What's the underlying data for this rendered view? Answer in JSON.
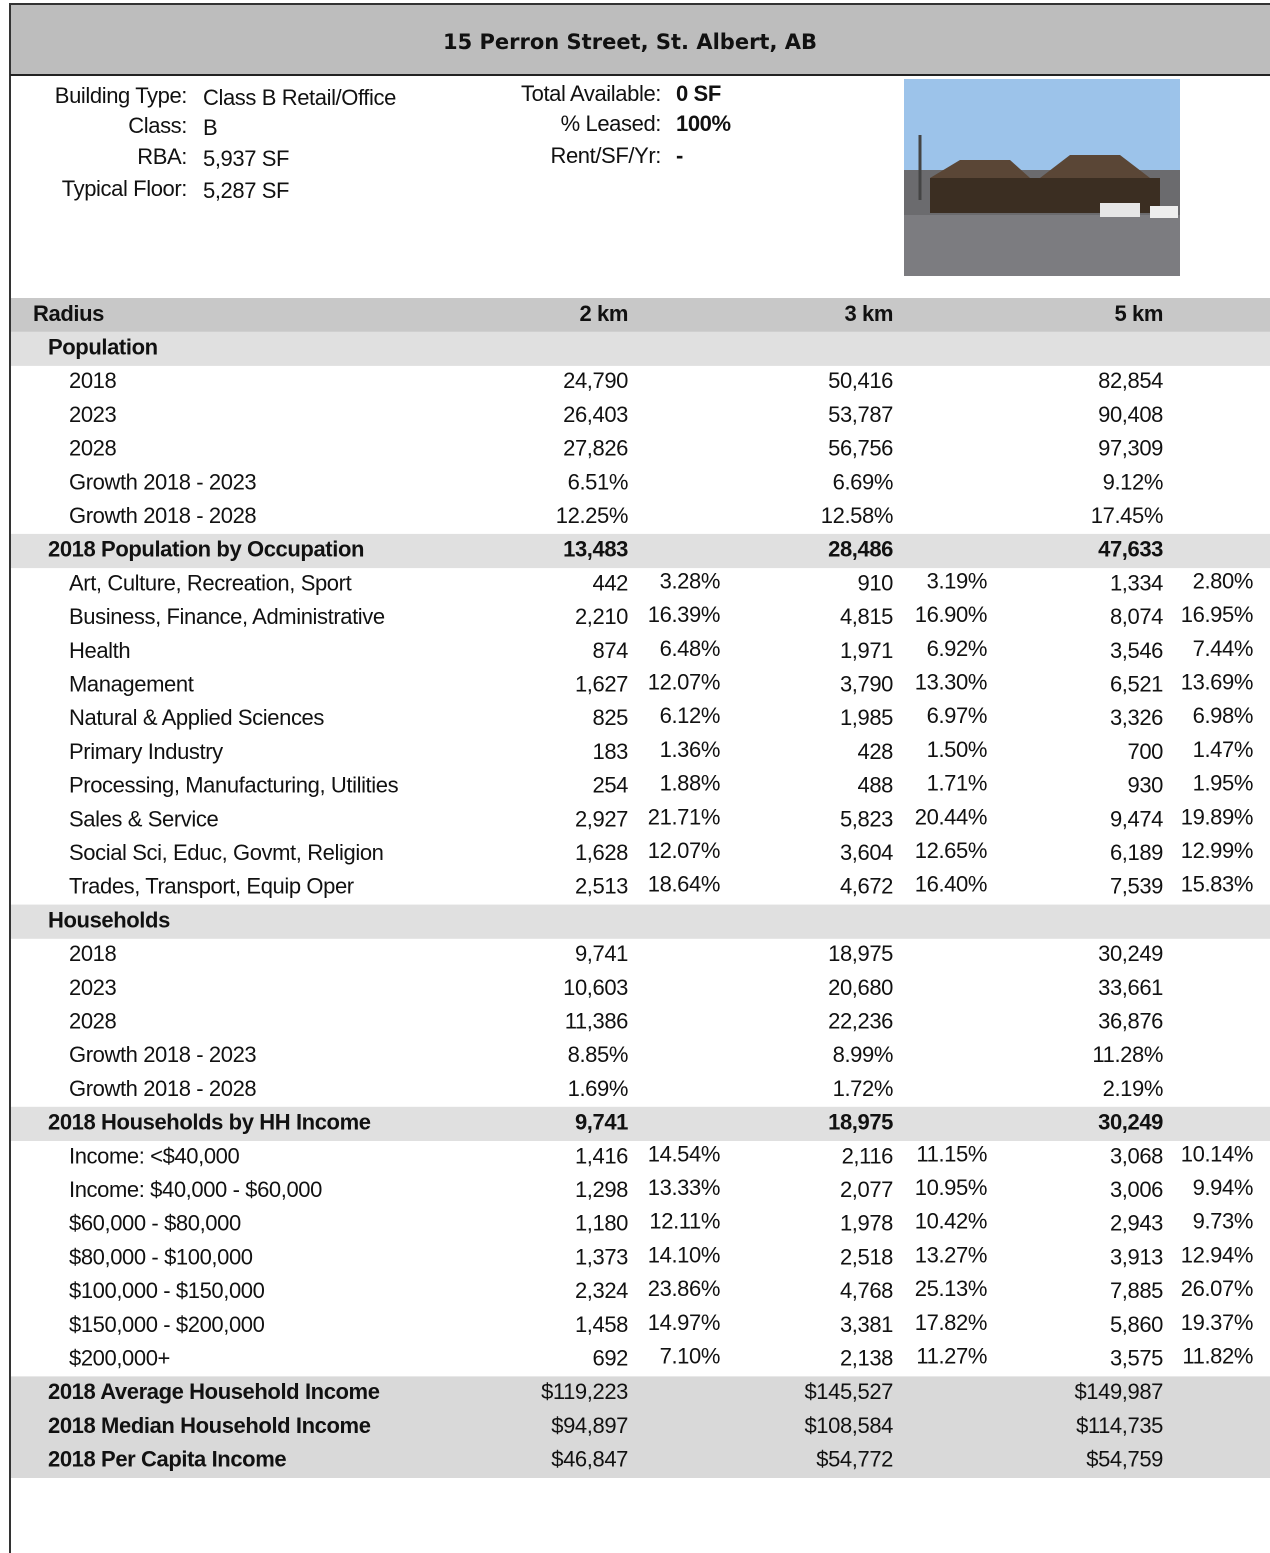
{
  "title": "15 Perron Street, St. Albert, AB",
  "details": {
    "left": [
      {
        "label": "Building Type:",
        "value": "Class B Retail/Office"
      },
      {
        "label": "Class:",
        "value": "B"
      },
      {
        "label": "RBA:",
        "value": "5,937 SF"
      },
      {
        "label": "Typical Floor:",
        "value": "5,287 SF"
      }
    ],
    "right": [
      {
        "label": "Total Available:",
        "value": "0 SF"
      },
      {
        "label": "% Leased:",
        "value": "100%"
      },
      {
        "label": "Rent/SF/Yr:",
        "value": "-"
      }
    ]
  },
  "table": {
    "header": [
      "Radius",
      "2 km",
      "3 km",
      "5 km"
    ],
    "sections": [
      {
        "title": "Population",
        "rows": [
          {
            "label": "2018",
            "values": [
              "24,790",
              "50,416",
              "82,854"
            ]
          },
          {
            "label": "2023",
            "values": [
              "26,403",
              "53,787",
              "90,408"
            ]
          },
          {
            "label": "2028",
            "values": [
              "27,826",
              "56,756",
              "97,309"
            ]
          },
          {
            "label": "Growth 2018 - 2023",
            "values": [
              "6.51%",
              "6.69%",
              "9.12%"
            ]
          },
          {
            "label": "Growth 2018 - 2028",
            "values": [
              "12.25%",
              "12.58%",
              "17.45%"
            ]
          }
        ]
      },
      {
        "title": "2018 Population by Occupation",
        "totals": [
          "13,483",
          "28,486",
          "47,633"
        ],
        "rows": [
          {
            "label": "Art, Culture, Recreation, Sport",
            "values": [
              "442",
              "910",
              "1,334"
            ],
            "shares": [
              "3.28%",
              "3.19%",
              "2.80%"
            ]
          },
          {
            "label": "Business, Finance, Administrative",
            "values": [
              "2,210",
              "4,815",
              "8,074"
            ],
            "shares": [
              "16.39%",
              "16.90%",
              "16.95%"
            ]
          },
          {
            "label": "Health",
            "values": [
              "874",
              "1,971",
              "3,546"
            ],
            "shares": [
              "6.48%",
              "6.92%",
              "7.44%"
            ]
          },
          {
            "label": "Management",
            "values": [
              "1,627",
              "3,790",
              "6,521"
            ],
            "shares": [
              "12.07%",
              "13.30%",
              "13.69%"
            ]
          },
          {
            "label": "Natural & Applied Sciences",
            "values": [
              "825",
              "1,985",
              "3,326"
            ],
            "shares": [
              "6.12%",
              "6.97%",
              "6.98%"
            ]
          },
          {
            "label": "Primary Industry",
            "values": [
              "183",
              "428",
              "700"
            ],
            "shares": [
              "1.36%",
              "1.50%",
              "1.47%"
            ]
          },
          {
            "label": "Processing, Manufacturing, Utilities",
            "values": [
              "254",
              "488",
              "930"
            ],
            "shares": [
              "1.88%",
              "1.71%",
              "1.95%"
            ]
          },
          {
            "label": "Sales & Service",
            "values": [
              "2,927",
              "5,823",
              "9,474"
            ],
            "shares": [
              "21.71%",
              "20.44%",
              "19.89%"
            ]
          },
          {
            "label": "Social Sci, Educ, Govmt, Religion",
            "values": [
              "1,628",
              "3,604",
              "6,189"
            ],
            "shares": [
              "12.07%",
              "12.65%",
              "12.99%"
            ]
          },
          {
            "label": "Trades, Transport, Equip Oper",
            "values": [
              "2,513",
              "4,672",
              "7,539"
            ],
            "shares": [
              "18.64%",
              "16.40%",
              "15.83%"
            ]
          }
        ]
      },
      {
        "title": "Households",
        "rows": [
          {
            "label": "2018",
            "values": [
              "9,741",
              "18,975",
              "30,249"
            ]
          },
          {
            "label": "2023",
            "values": [
              "10,603",
              "20,680",
              "33,661"
            ]
          },
          {
            "label": "2028",
            "values": [
              "11,386",
              "22,236",
              "36,876"
            ]
          },
          {
            "label": "Growth 2018 - 2023",
            "values": [
              "8.85%",
              "8.99%",
              "11.28%"
            ]
          },
          {
            "label": "Growth 2018 - 2028",
            "values": [
              "1.69%",
              "1.72%",
              "2.19%"
            ]
          }
        ]
      },
      {
        "title": "2018 Households by HH Income",
        "totals": [
          "9,741",
          "18,975",
          "30,249"
        ],
        "rows": [
          {
            "label": "Income: <$40,000",
            "values": [
              "1,416",
              "2,116",
              "3,068"
            ],
            "shares": [
              "14.54%",
              "11.15%",
              "10.14%"
            ]
          },
          {
            "label": "Income: $40,000 - $60,000",
            "values": [
              "1,298",
              "2,077",
              "3,006"
            ],
            "shares": [
              "13.33%",
              "10.95%",
              "9.94%"
            ]
          },
          {
            "label": "$60,000 - $80,000",
            "values": [
              "1,180",
              "1,978",
              "2,943"
            ],
            "shares": [
              "12.11%",
              "10.42%",
              "9.73%"
            ]
          },
          {
            "label": "$80,000 - $100,000",
            "values": [
              "1,373",
              "2,518",
              "3,913"
            ],
            "shares": [
              "14.10%",
              "13.27%",
              "12.94%"
            ]
          },
          {
            "label": "$100,000 - $150,000",
            "values": [
              "2,324",
              "4,768",
              "7,885"
            ],
            "shares": [
              "23.86%",
              "25.13%",
              "26.07%"
            ]
          },
          {
            "label": "$150,000 - $200,000",
            "values": [
              "1,458",
              "3,381",
              "5,860"
            ],
            "shares": [
              "14.97%",
              "17.82%",
              "19.37%"
            ]
          },
          {
            "label": "$200,000+",
            "values": [
              "692",
              "2,138",
              "3,575"
            ],
            "shares": [
              "7.10%",
              "11.27%",
              "11.82%"
            ]
          }
        ]
      }
    ],
    "summary": [
      {
        "label": "2018 Average Household Income",
        "values": [
          "$119,223",
          "$145,527",
          "$149,987"
        ]
      },
      {
        "label": "2018 Median Household Income",
        "values": [
          "$94,897",
          "$108,584",
          "$114,735"
        ]
      },
      {
        "label": "2018 Per Capita Income",
        "values": [
          "$46,847",
          "$54,772",
          "$54,759"
        ]
      }
    ]
  }
}
